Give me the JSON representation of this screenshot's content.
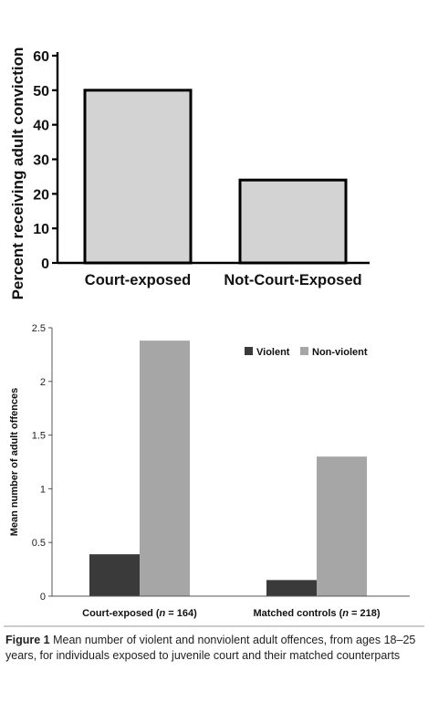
{
  "chart_data": [
    {
      "type": "bar",
      "title": "",
      "xlabel": "",
      "ylabel": "Percent receiving adult conviction",
      "categories": [
        "Court-exposed",
        "Not-Court-Exposed"
      ],
      "values": [
        50,
        24
      ],
      "ylim": [
        0,
        60
      ],
      "yticks": [
        "0",
        "10",
        "20",
        "30",
        "40",
        "50",
        "60"
      ],
      "grid": false,
      "colors": {
        "bar": "#d3d3d3",
        "edge": "#000000"
      }
    },
    {
      "type": "bar",
      "title": "",
      "xlabel": "",
      "ylabel": "Mean number of adult offences",
      "categories": [
        "Court-exposed (n = 164)",
        "Matched controls (n = 218)"
      ],
      "category_parts": [
        {
          "pre": "Court-exposed (",
          "n": "n",
          "post": " = 164)"
        },
        {
          "pre": "Matched controls (",
          "n": "n",
          "post": " = 218)"
        }
      ],
      "series": [
        {
          "name": "Violent",
          "values": [
            0.39,
            0.15
          ],
          "color": "#3a3a3a"
        },
        {
          "name": "Non-violent",
          "values": [
            2.38,
            1.3
          ],
          "color": "#a6a6a6"
        }
      ],
      "ylim": [
        0,
        2.5
      ],
      "yticks": [
        "0",
        "0.5",
        "1",
        "1.5",
        "2",
        "2.5"
      ],
      "grid": false,
      "legend": "top-right"
    }
  ],
  "caption": {
    "label": "Figure 1",
    "text": " Mean number of violent and nonviolent adult offences, from ages 18–25 years, for individuals exposed to juvenile court and their matched counterparts"
  }
}
